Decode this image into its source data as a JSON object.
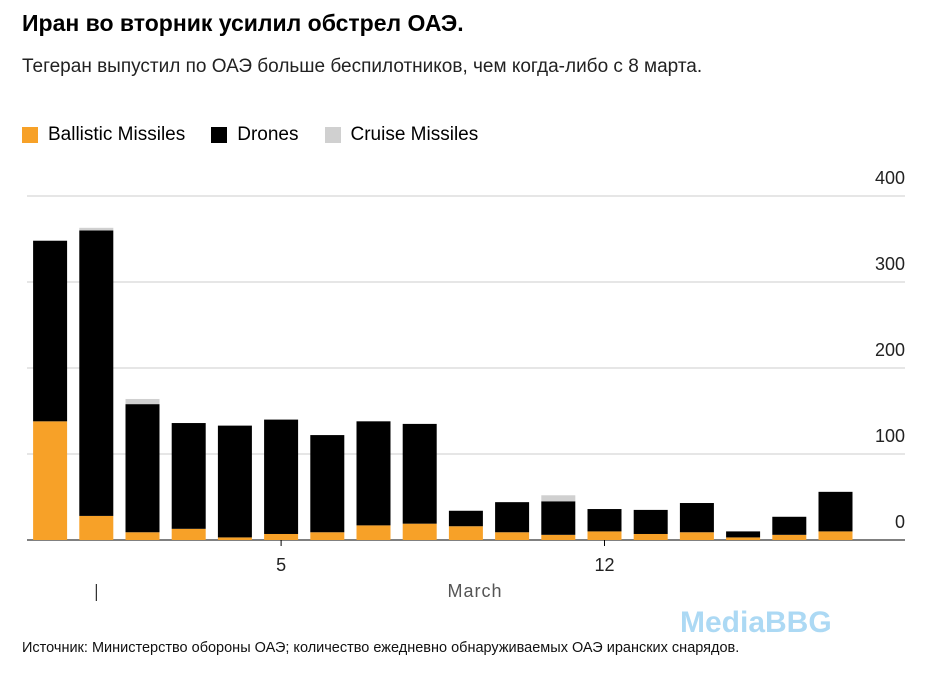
{
  "chart_data": {
    "type": "bar",
    "stacked": true,
    "title": "Иран во вторник усилил обстрел ОАЭ.",
    "subtitle": "Тегеран выпустил по ОАЭ больше беспилотников, чем когда-либо с 8 марта.",
    "x_label": "March",
    "categories": [
      null,
      null,
      null,
      null,
      null,
      "5",
      null,
      null,
      null,
      null,
      null,
      null,
      "12",
      null,
      null,
      null,
      null,
      null
    ],
    "series": [
      {
        "name": "Ballistic Missiles",
        "color": "#f7a128",
        "values": [
          138,
          28,
          9,
          13,
          3,
          7,
          9,
          17,
          19,
          16,
          9,
          6,
          10,
          7,
          9,
          3,
          6,
          10
        ]
      },
      {
        "name": "Drones",
        "color": "#000000",
        "values": [
          210,
          332,
          149,
          123,
          130,
          133,
          113,
          121,
          116,
          18,
          35,
          39,
          26,
          28,
          34,
          7,
          21,
          46
        ]
      },
      {
        "name": "Cruise Missiles",
        "color": "#d0d0d0",
        "values": [
          0,
          3,
          6,
          0,
          0,
          0,
          0,
          0,
          0,
          0,
          0,
          7,
          0,
          0,
          0,
          0,
          0,
          0
        ]
      }
    ],
    "ylim": [
      0,
      400
    ],
    "yticks": [
      0,
      100,
      200,
      300,
      400
    ],
    "grid": true,
    "source": "Источник: Министерство обороны ОАЭ; количество ежедневно обнаруживаемых ОАЭ иранских снарядов.",
    "watermark": "MediaBBG"
  }
}
